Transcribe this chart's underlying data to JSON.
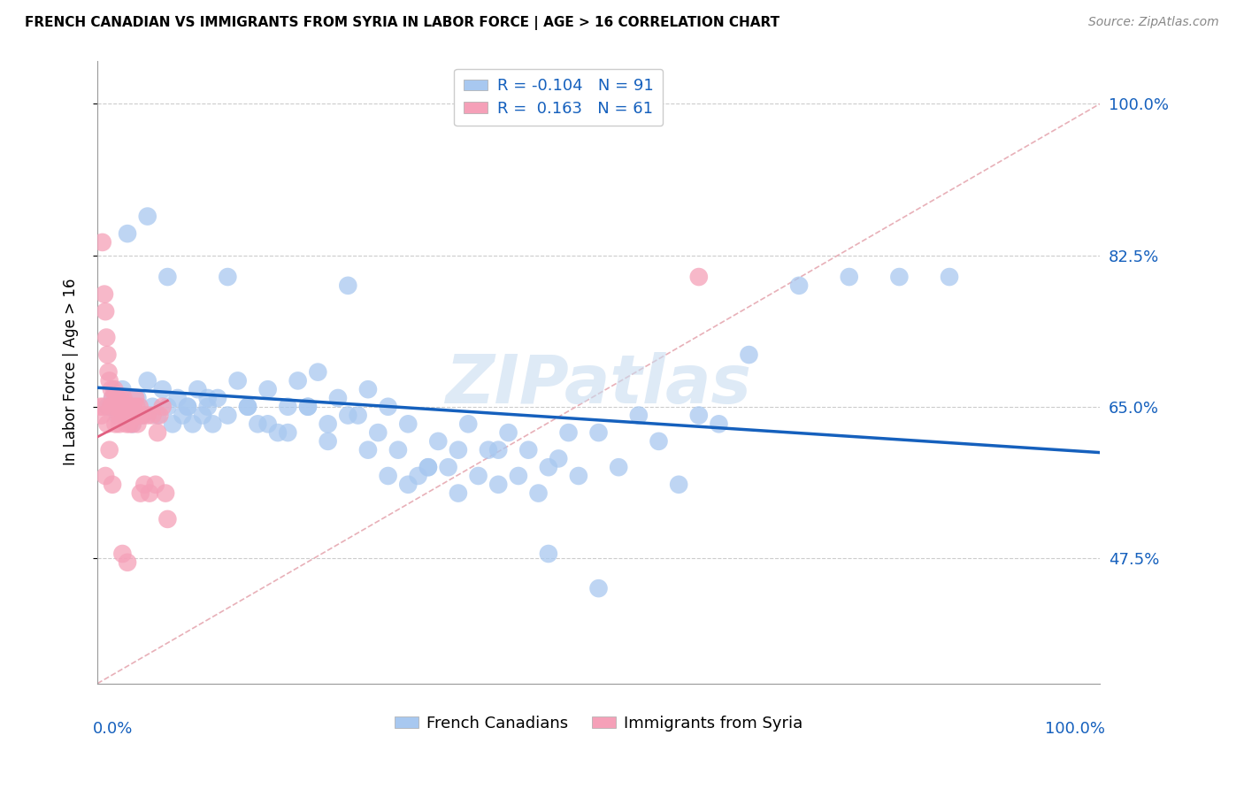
{
  "title": "FRENCH CANADIAN VS IMMIGRANTS FROM SYRIA IN LABOR FORCE | AGE > 16 CORRELATION CHART",
  "source": "Source: ZipAtlas.com",
  "ylabel": "In Labor Force | Age > 16",
  "ytick_labels": [
    "47.5%",
    "65.0%",
    "82.5%",
    "100.0%"
  ],
  "ytick_values": [
    0.475,
    0.65,
    0.825,
    1.0
  ],
  "xlim": [
    0.0,
    1.0
  ],
  "ylim": [
    0.33,
    1.05
  ],
  "blue_color": "#A8C8F0",
  "pink_color": "#F5A0B8",
  "blue_line_color": "#1560BD",
  "pink_line_color": "#E06080",
  "diag_line_color": "#E8B0B8",
  "blue_R": -0.104,
  "blue_N": 91,
  "pink_R": 0.163,
  "pink_N": 61,
  "blue_intercept": 0.672,
  "blue_slope": -0.075,
  "pink_intercept": 0.615,
  "pink_slope": 0.6,
  "blue_x": [
    0.01,
    0.015,
    0.02,
    0.025,
    0.03,
    0.035,
    0.04,
    0.045,
    0.05,
    0.055,
    0.06,
    0.065,
    0.07,
    0.075,
    0.08,
    0.085,
    0.09,
    0.095,
    0.1,
    0.105,
    0.11,
    0.115,
    0.12,
    0.13,
    0.14,
    0.15,
    0.16,
    0.17,
    0.18,
    0.19,
    0.2,
    0.21,
    0.22,
    0.23,
    0.24,
    0.25,
    0.26,
    0.27,
    0.28,
    0.29,
    0.3,
    0.31,
    0.32,
    0.33,
    0.34,
    0.35,
    0.36,
    0.37,
    0.38,
    0.39,
    0.4,
    0.41,
    0.42,
    0.43,
    0.44,
    0.45,
    0.46,
    0.47,
    0.48,
    0.5,
    0.52,
    0.54,
    0.56,
    0.58,
    0.6,
    0.62,
    0.65,
    0.7,
    0.75,
    0.8,
    0.85,
    0.03,
    0.05,
    0.07,
    0.09,
    0.11,
    0.13,
    0.15,
    0.17,
    0.19,
    0.21,
    0.23,
    0.25,
    0.27,
    0.29,
    0.31,
    0.33,
    0.36,
    0.4,
    0.45,
    0.5
  ],
  "blue_y": [
    0.65,
    0.66,
    0.64,
    0.67,
    0.65,
    0.63,
    0.66,
    0.64,
    0.68,
    0.65,
    0.64,
    0.67,
    0.65,
    0.63,
    0.66,
    0.64,
    0.65,
    0.63,
    0.67,
    0.64,
    0.65,
    0.63,
    0.66,
    0.8,
    0.68,
    0.65,
    0.63,
    0.67,
    0.62,
    0.65,
    0.68,
    0.65,
    0.69,
    0.63,
    0.66,
    0.79,
    0.64,
    0.67,
    0.62,
    0.65,
    0.6,
    0.63,
    0.57,
    0.58,
    0.61,
    0.58,
    0.6,
    0.63,
    0.57,
    0.6,
    0.6,
    0.62,
    0.57,
    0.6,
    0.55,
    0.58,
    0.59,
    0.62,
    0.57,
    0.62,
    0.58,
    0.64,
    0.61,
    0.56,
    0.64,
    0.63,
    0.71,
    0.79,
    0.8,
    0.8,
    0.8,
    0.85,
    0.87,
    0.8,
    0.65,
    0.66,
    0.64,
    0.65,
    0.63,
    0.62,
    0.65,
    0.61,
    0.64,
    0.6,
    0.57,
    0.56,
    0.58,
    0.55,
    0.56,
    0.48,
    0.44
  ],
  "pink_x": [
    0.003,
    0.005,
    0.007,
    0.008,
    0.009,
    0.01,
    0.011,
    0.012,
    0.013,
    0.014,
    0.015,
    0.016,
    0.017,
    0.018,
    0.019,
    0.02,
    0.021,
    0.022,
    0.023,
    0.024,
    0.025,
    0.026,
    0.027,
    0.028,
    0.029,
    0.03,
    0.031,
    0.032,
    0.033,
    0.034,
    0.035,
    0.036,
    0.037,
    0.038,
    0.039,
    0.04,
    0.041,
    0.042,
    0.043,
    0.045,
    0.047,
    0.05,
    0.052,
    0.055,
    0.058,
    0.06,
    0.062,
    0.065,
    0.068,
    0.07,
    0.004,
    0.006,
    0.008,
    0.01,
    0.012,
    0.015,
    0.018,
    0.022,
    0.025,
    0.03,
    0.6
  ],
  "pink_y": [
    0.65,
    0.84,
    0.78,
    0.76,
    0.73,
    0.71,
    0.69,
    0.68,
    0.65,
    0.67,
    0.66,
    0.65,
    0.67,
    0.66,
    0.65,
    0.66,
    0.65,
    0.64,
    0.66,
    0.65,
    0.64,
    0.66,
    0.65,
    0.64,
    0.63,
    0.65,
    0.64,
    0.63,
    0.65,
    0.64,
    0.63,
    0.65,
    0.64,
    0.66,
    0.65,
    0.63,
    0.64,
    0.65,
    0.55,
    0.64,
    0.56,
    0.64,
    0.55,
    0.64,
    0.56,
    0.62,
    0.64,
    0.65,
    0.55,
    0.52,
    0.64,
    0.65,
    0.57,
    0.63,
    0.6,
    0.56,
    0.63,
    0.63,
    0.48,
    0.47,
    0.8
  ]
}
